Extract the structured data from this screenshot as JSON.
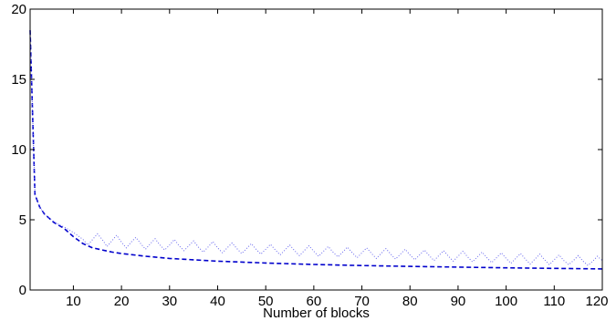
{
  "chart_data": {
    "type": "line",
    "title": "",
    "xlabel": "Number of blocks",
    "ylabel": "",
    "xlim": [
      1,
      120
    ],
    "ylim": [
      0,
      20
    ],
    "xticks": [
      10,
      20,
      30,
      40,
      50,
      60,
      70,
      80,
      90,
      100,
      110,
      120
    ],
    "yticks": [
      0,
      5,
      10,
      15,
      20
    ],
    "grid": false,
    "legend": "none",
    "series": [
      {
        "style": "dashed",
        "color": "#0000cc",
        "x": [
          1,
          2,
          3,
          4,
          5,
          6,
          7,
          8,
          9,
          10,
          12,
          14,
          16,
          18,
          20,
          25,
          30,
          35,
          40,
          50,
          60,
          70,
          80,
          90,
          100,
          110,
          120
        ],
        "y": [
          18.5,
          6.8,
          5.9,
          5.4,
          5.1,
          4.8,
          4.6,
          4.4,
          4.1,
          3.8,
          3.3,
          3.0,
          2.85,
          2.7,
          2.6,
          2.4,
          2.25,
          2.15,
          2.05,
          1.92,
          1.82,
          1.74,
          1.68,
          1.63,
          1.58,
          1.54,
          1.5
        ]
      },
      {
        "style": "dotted",
        "color": "#6666ee",
        "x": [
          1,
          2,
          3,
          4,
          5,
          6,
          7,
          8,
          9,
          10,
          11,
          12,
          13,
          14,
          15,
          16,
          17,
          18,
          19,
          20,
          21,
          22,
          23,
          24,
          25,
          26,
          27,
          28,
          29,
          30,
          31,
          32,
          33,
          34,
          35,
          36,
          37,
          38,
          39,
          40,
          41,
          42,
          43,
          44,
          45,
          46,
          47,
          48,
          49,
          50,
          51,
          52,
          53,
          54,
          55,
          56,
          57,
          58,
          59,
          60,
          61,
          62,
          63,
          64,
          65,
          66,
          67,
          68,
          69,
          70,
          71,
          72,
          73,
          74,
          75,
          76,
          77,
          78,
          79,
          80,
          81,
          82,
          83,
          84,
          85,
          86,
          87,
          88,
          89,
          90,
          91,
          92,
          93,
          94,
          95,
          96,
          97,
          98,
          99,
          100,
          101,
          102,
          103,
          104,
          105,
          106,
          107,
          108,
          109,
          110,
          111,
          112,
          113,
          114,
          115,
          116,
          117,
          118,
          119,
          120
        ],
        "y": [
          18.5,
          6.8,
          5.9,
          5.4,
          5.1,
          4.85,
          4.65,
          4.5,
          4.3,
          4.1,
          3.85,
          3.6,
          3.2,
          3.6,
          4.0,
          3.6,
          3.1,
          3.5,
          3.9,
          3.4,
          3.0,
          3.4,
          3.75,
          3.3,
          2.9,
          3.3,
          3.65,
          3.2,
          2.85,
          3.2,
          3.6,
          3.15,
          2.8,
          3.15,
          3.5,
          3.05,
          2.7,
          3.05,
          3.45,
          3.0,
          2.65,
          3.0,
          3.35,
          2.95,
          2.6,
          2.95,
          3.3,
          2.9,
          2.55,
          2.9,
          3.25,
          2.85,
          2.5,
          2.85,
          3.2,
          2.8,
          2.45,
          2.8,
          3.15,
          2.75,
          2.4,
          2.75,
          3.1,
          2.7,
          2.35,
          2.7,
          3.05,
          2.65,
          2.3,
          2.65,
          3.0,
          2.6,
          2.25,
          2.6,
          2.95,
          2.55,
          2.2,
          2.55,
          2.9,
          2.5,
          2.15,
          2.5,
          2.85,
          2.45,
          2.1,
          2.45,
          2.8,
          2.4,
          2.05,
          2.4,
          2.75,
          2.35,
          2.0,
          2.35,
          2.7,
          2.3,
          1.95,
          2.3,
          2.65,
          2.25,
          1.9,
          2.25,
          2.6,
          2.2,
          1.85,
          2.2,
          2.55,
          2.15,
          1.8,
          2.15,
          2.5,
          2.1,
          1.8,
          2.1,
          2.45,
          2.05,
          1.75,
          2.05,
          2.4,
          2.1
        ]
      }
    ]
  }
}
